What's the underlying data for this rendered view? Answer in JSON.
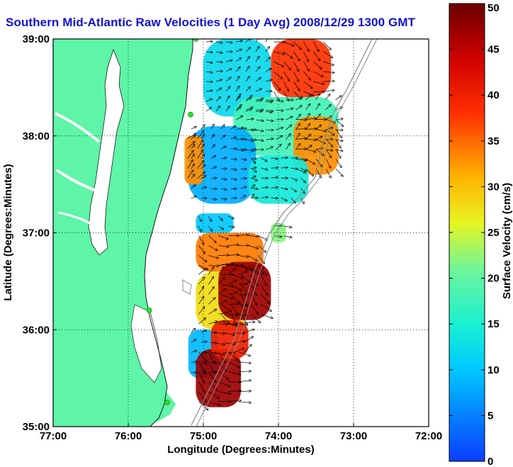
{
  "title": "Southern Mid-Atlantic Raw Velocities (1 Day Avg) 2008/12/29 1300 GMT",
  "colors": {
    "land": "#5ef5a8",
    "title": "#1010d8",
    "isobath": "#8a8a8a",
    "station": "#33dd33"
  },
  "chart_data": {
    "type": "heatmap",
    "xlabel": "Longitude (Degrees:Minutes)",
    "ylabel": "Latitude (Degrees:Minutes)",
    "xlim": [
      -77,
      -72
    ],
    "ylim": [
      35,
      39
    ],
    "x_ticks": [
      {
        "value": -77,
        "label": "77:00"
      },
      {
        "value": -76,
        "label": "76:00"
      },
      {
        "value": -75,
        "label": "75:00"
      },
      {
        "value": -74,
        "label": "74:00"
      },
      {
        "value": -73,
        "label": "73:00"
      },
      {
        "value": -72,
        "label": "72:00"
      }
    ],
    "y_ticks": [
      {
        "value": 35,
        "label": "35:00"
      },
      {
        "value": 36,
        "label": "36:00"
      },
      {
        "value": 37,
        "label": "37:00"
      },
      {
        "value": 38,
        "label": "38:00"
      },
      {
        "value": 39,
        "label": "39:00"
      }
    ],
    "grid": true,
    "colorbar": {
      "label": "Surface Velocity (cm/s)",
      "range": [
        0,
        50
      ],
      "ticks": [
        0,
        5,
        10,
        15,
        20,
        25,
        30,
        35,
        40,
        45,
        50
      ]
    },
    "velocity_regions": [
      {
        "lon": [
          -75.0,
          -74.1
        ],
        "lat": [
          38.2,
          39.0
        ],
        "speed": 12
      },
      {
        "lon": [
          -74.1,
          -73.3
        ],
        "lat": [
          38.4,
          39.0
        ],
        "speed": 38
      },
      {
        "lon": [
          -74.6,
          -73.2
        ],
        "lat": [
          37.8,
          38.4
        ],
        "speed": 18
      },
      {
        "lon": [
          -73.8,
          -73.2
        ],
        "lat": [
          37.6,
          38.2
        ],
        "speed": 33
      },
      {
        "lon": [
          -75.2,
          -74.3
        ],
        "lat": [
          37.3,
          38.1
        ],
        "speed": 8
      },
      {
        "lon": [
          -74.4,
          -73.6
        ],
        "lat": [
          37.3,
          37.8
        ],
        "speed": 14
      },
      {
        "lon": [
          -75.25,
          -75.0
        ],
        "lat": [
          37.5,
          38.0
        ],
        "speed": 33
      },
      {
        "lon": [
          -75.1,
          -74.6
        ],
        "lat": [
          37.0,
          37.2
        ],
        "speed": 10
      },
      {
        "lon": [
          -74.1,
          -73.9
        ],
        "lat": [
          36.9,
          37.1
        ],
        "speed": 22
      },
      {
        "lon": [
          -75.1,
          -74.2
        ],
        "lat": [
          36.6,
          37.0
        ],
        "speed": 34
      },
      {
        "lon": [
          -75.1,
          -74.4
        ],
        "lat": [
          36.0,
          36.6
        ],
        "speed": 28
      },
      {
        "lon": [
          -74.8,
          -74.1
        ],
        "lat": [
          36.1,
          36.7
        ],
        "speed": 47
      },
      {
        "lon": [
          -75.2,
          -74.8
        ],
        "lat": [
          35.5,
          36.0
        ],
        "speed": 9
      },
      {
        "lon": [
          -75.1,
          -74.5
        ],
        "lat": [
          35.2,
          35.8
        ],
        "speed": 47
      },
      {
        "lon": [
          -74.9,
          -74.4
        ],
        "lat": [
          35.7,
          36.1
        ],
        "speed": 40
      }
    ],
    "radar_stations": [
      {
        "lon": -75.1,
        "lat": 39.0
      },
      {
        "lon": -75.17,
        "lat": 38.22
      },
      {
        "lon": -75.72,
        "lat": 36.2
      },
      {
        "lon": -75.48,
        "lat": 35.25
      }
    ]
  }
}
